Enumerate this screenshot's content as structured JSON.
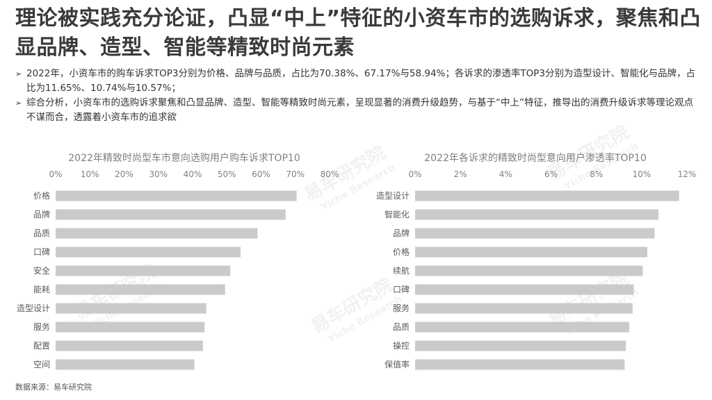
{
  "title": "理论被实践充分论证，凸显“中上”特征的小资车市的选购诉求，聚焦和凸显品牌、造型、智能等精致时尚元素",
  "bullets": [
    "2022年，小资车市的购车诉求TOP3分别为价格、品牌与品质，占比为70.38%、67.17%与58.94%；各诉求的渗透率TOP3分别为造型设计、智能化与品牌，占比为11.65%、10.74%与10.57%；",
    "综合分析，小资车市的选购诉求聚焦和凸显品牌、造型、智能等精致时尚元素，呈现显著的消费升级趋势，与基于“中上”特征，推导出的消费升级诉求等理论观点不谋而合，透露着小资车市的追求欲"
  ],
  "bullet_mark": "➢",
  "source": "数据来源：易车研究院",
  "watermark": {
    "cn": "易车研究院",
    "en": "Yiche Research"
  },
  "colors": {
    "bar": "#c9cacb",
    "title": "#3a3a3a"
  },
  "chart_data": [
    {
      "type": "bar",
      "orientation": "horizontal",
      "title": "2022年精致时尚型车市意向选购用户购车诉求TOP10",
      "categories": [
        "价格",
        "品牌",
        "品质",
        "口碑",
        "安全",
        "能耗",
        "造型设计",
        "服务",
        "配置",
        "空间"
      ],
      "values": [
        70.38,
        67.17,
        58.94,
        54.0,
        51.0,
        49.5,
        44.0,
        43.5,
        43.0,
        40.5
      ],
      "xlim": [
        0,
        80
      ],
      "ticks": [
        "0%",
        "10%",
        "20%",
        "30%",
        "40%",
        "50%",
        "60%",
        "70%",
        "80%"
      ],
      "grid": false,
      "axis_position": "top"
    },
    {
      "type": "bar",
      "orientation": "horizontal",
      "title": "2022年各诉求的精致时尚型意向用户渗透率TOP10",
      "categories": [
        "造型设计",
        "智能化",
        "品牌",
        "价格",
        "续航",
        "口碑",
        "服务",
        "品质",
        "操控",
        "保值率"
      ],
      "values": [
        11.65,
        10.74,
        10.57,
        10.25,
        10.05,
        9.65,
        9.6,
        9.45,
        9.3,
        9.25
      ],
      "xlim": [
        0,
        12
      ],
      "ticks": [
        "0%",
        "2%",
        "4%",
        "6%",
        "8%",
        "10%",
        "12%"
      ],
      "grid": false,
      "axis_position": "top"
    }
  ]
}
